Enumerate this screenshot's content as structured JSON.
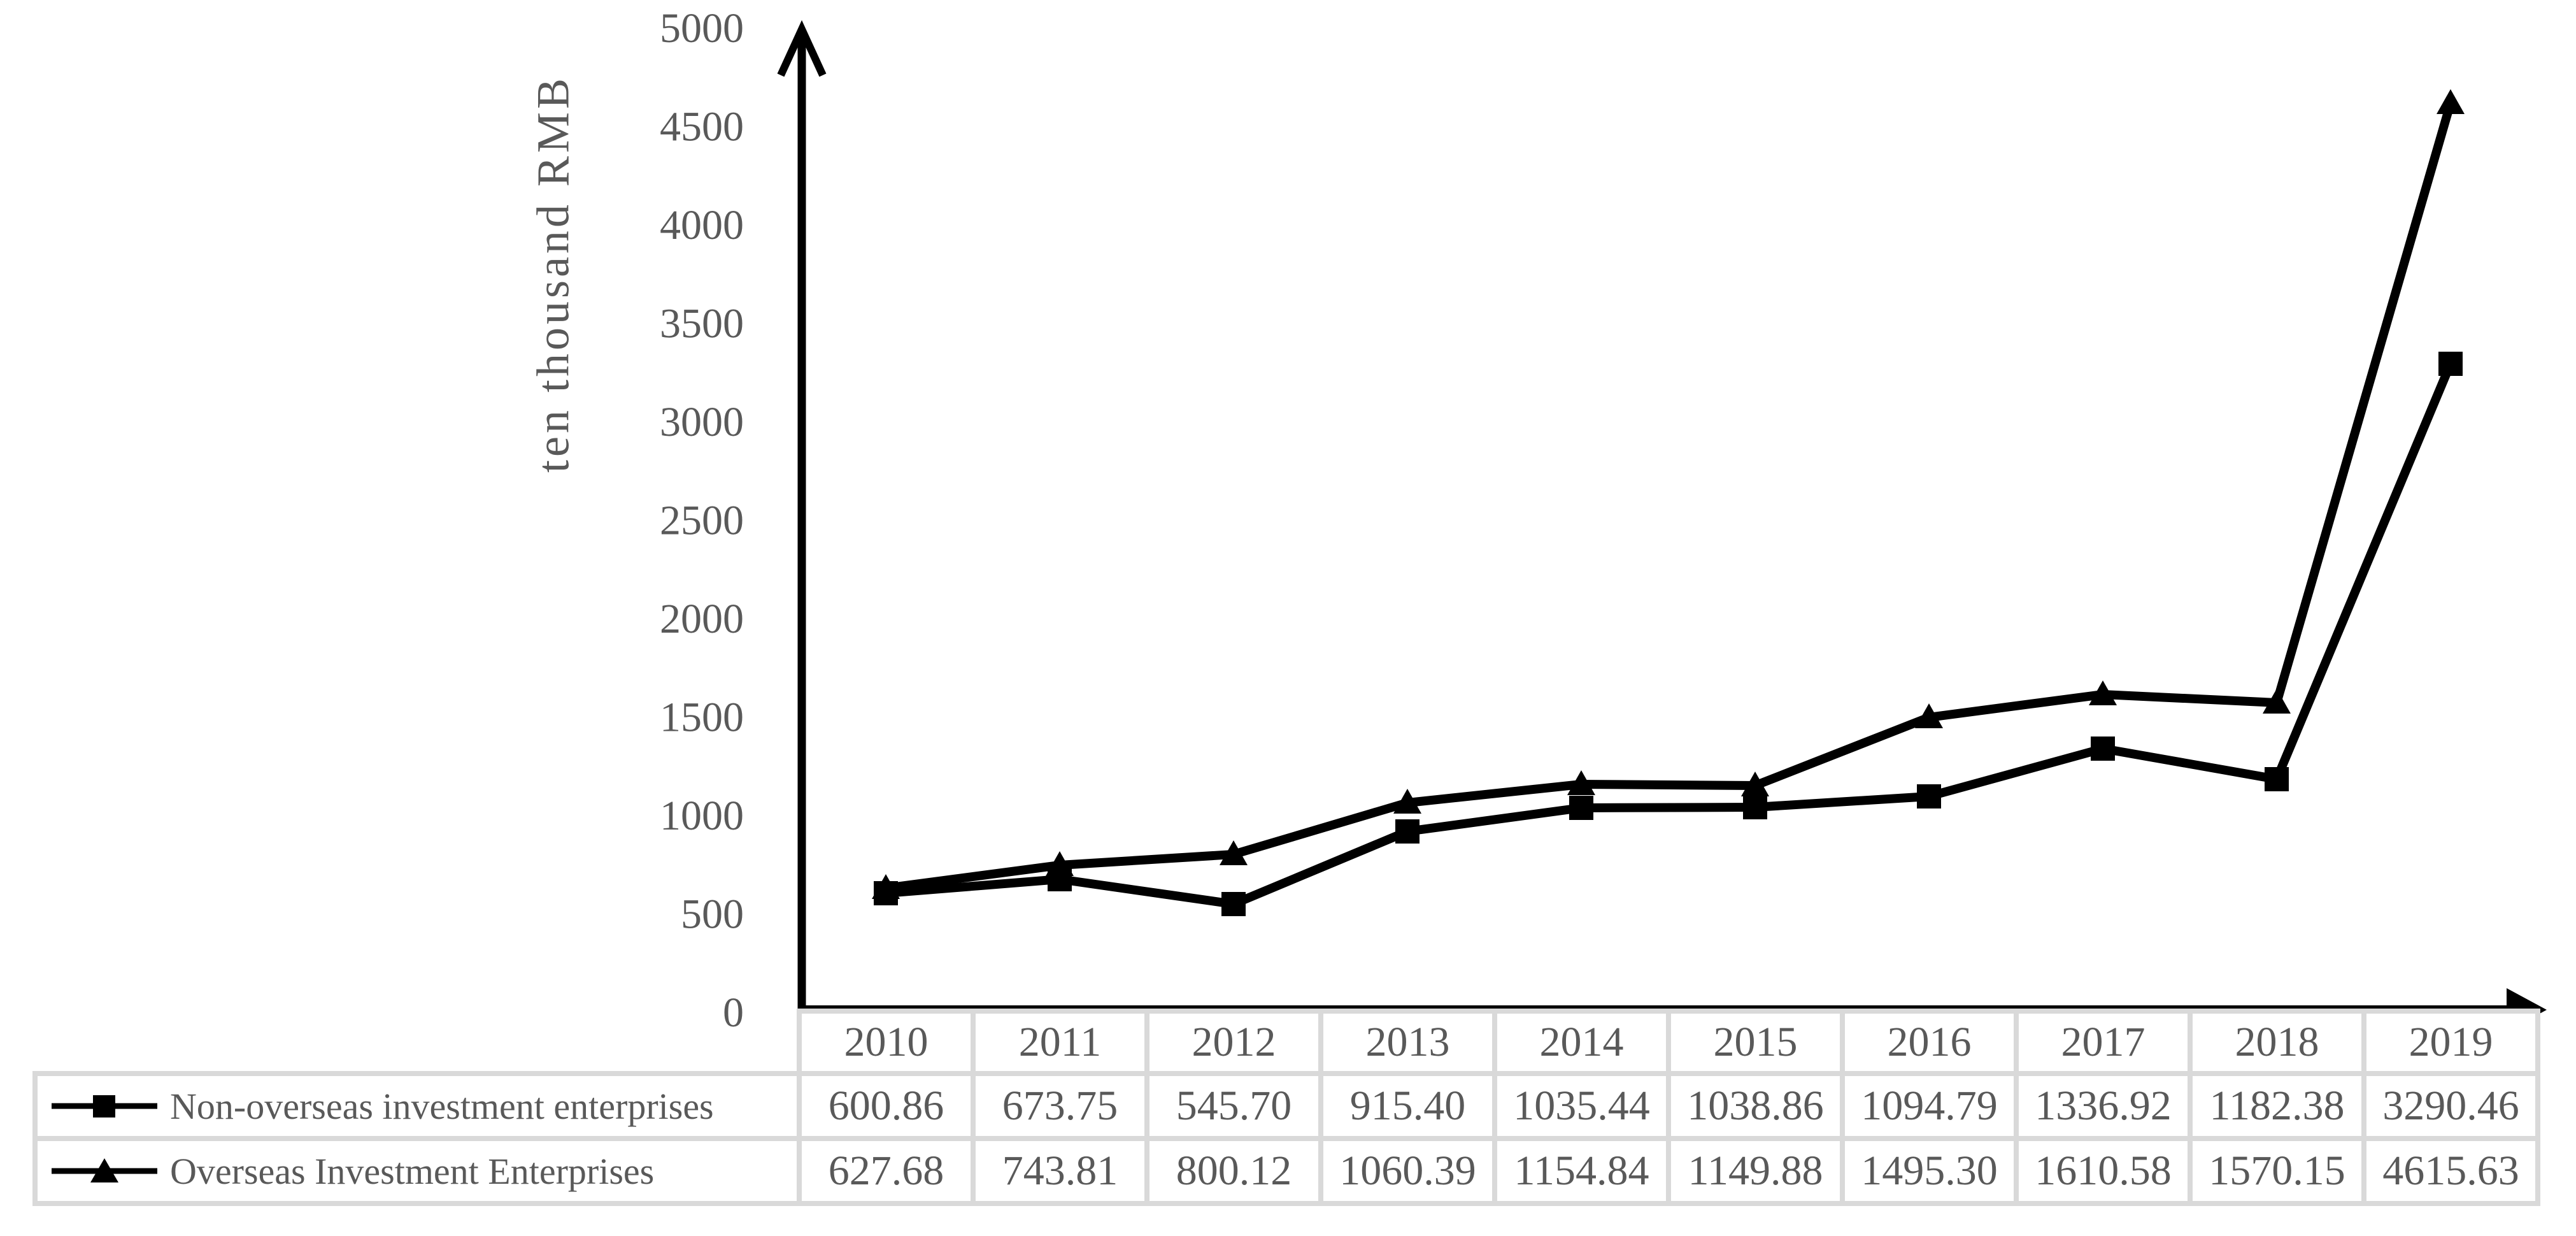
{
  "figure": {
    "background": "#ffffff",
    "text_color": "#595959",
    "line_color": "#000000",
    "table_border_color": "#d9d9d9"
  },
  "chart_data": {
    "type": "line",
    "title": "",
    "xlabel": "",
    "ylabel": "ten thousand RMB",
    "categories": [
      "2010",
      "2011",
      "2012",
      "2013",
      "2014",
      "2015",
      "2016",
      "2017",
      "2018",
      "2019"
    ],
    "series": [
      {
        "name": "Non-overseas investment enterprises",
        "marker": "square",
        "color": "#000000",
        "values": [
          600.86,
          673.75,
          545.7,
          915.4,
          1035.44,
          1038.86,
          1094.79,
          1336.92,
          1182.38,
          3290.46
        ],
        "display_values": [
          "600.86",
          "673.75",
          "545.70",
          "915.40",
          "1035.44",
          "1038.86",
          "1094.79",
          "1336.92",
          "1182.38",
          "3290.46"
        ]
      },
      {
        "name": "Overseas Investment Enterprises",
        "marker": "triangle",
        "color": "#000000",
        "values": [
          627.68,
          743.81,
          800.12,
          1060.39,
          1154.84,
          1149.88,
          1495.3,
          1610.58,
          1570.15,
          4615.63
        ],
        "display_values": [
          "627.68",
          "743.81",
          "800.12",
          "1060.39",
          "1154.84",
          "1149.88",
          "1495.30",
          "1610.58",
          "1570.15",
          "4615.63"
        ]
      }
    ],
    "ylim": [
      0,
      5000
    ],
    "ytick_step": 500,
    "yticks": [
      "0",
      "500",
      "1000",
      "1500",
      "2000",
      "2500",
      "3000",
      "3500",
      "4000",
      "4500",
      "5000"
    ],
    "grid": false,
    "legend_position": "table rows below chart (left column)"
  }
}
